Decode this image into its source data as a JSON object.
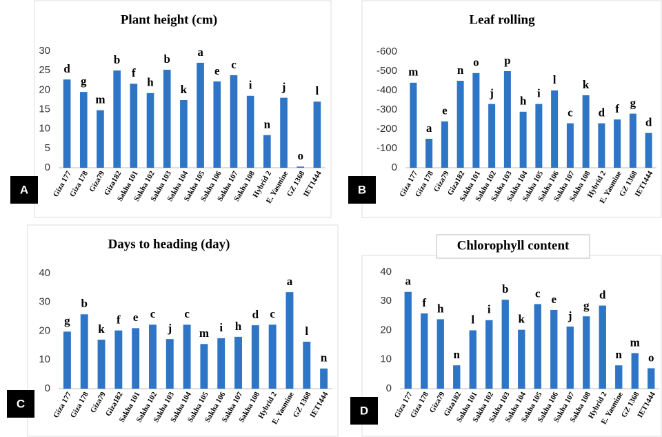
{
  "chart_data": [
    {
      "type": "bar",
      "title": "Plant height (cm)",
      "panel_label": "A",
      "color": "#2e75c6",
      "grid": false,
      "categories": [
        "Giza 177",
        "Giza 178",
        "Giza79",
        "Giza182",
        "Sakha 101",
        "Sakha 102",
        "Sakha 103",
        "Sakha 104",
        "Sakha 105",
        "Sakha 106",
        "Sakha 107",
        "Sakha 108",
        "Hybrid 2",
        "E. Yasmine",
        "GZ 1368",
        "IET1444"
      ],
      "values": [
        22.7,
        19.5,
        14.8,
        25,
        21.6,
        19.2,
        25.2,
        17.4,
        27,
        22.2,
        23.8,
        18.5,
        8.4,
        18,
        0.3,
        17
      ],
      "annotations": [
        "d",
        "g",
        "m",
        "b",
        "f",
        "h",
        "b",
        "k",
        "a",
        "e",
        "c",
        "i",
        "n",
        "j",
        "o",
        "l"
      ],
      "ylim": [
        0,
        30
      ],
      "yticks": [
        0,
        5,
        10,
        15,
        20,
        25,
        30
      ]
    },
    {
      "type": "bar",
      "title": "Leaf rolling",
      "panel_label": "B",
      "color": "#2e75c6",
      "grid": false,
      "categories": [
        "Giza 177",
        "Giza 178",
        "Giza79",
        "Giza182",
        "Sakha 101",
        "Sakha 102",
        "Sakha 103",
        "Sakha 104",
        "Sakha 105",
        "Sakha 106",
        "Sakha 107",
        "Sakha 108",
        "Hybrid 2",
        "E. Yasmine",
        "GZ 1368",
        "IET1444"
      ],
      "values": [
        -440,
        -150,
        -240,
        -450,
        -490,
        -330,
        -500,
        -290,
        -330,
        -400,
        -230,
        -375,
        -230,
        -250,
        -280,
        -180
      ],
      "annotations": [
        "m",
        "a",
        "e",
        "n",
        "o",
        "j",
        "p",
        "h",
        "i",
        "l",
        "c",
        "k",
        "d",
        "f",
        "g",
        "d"
      ],
      "ylim": [
        0,
        -600
      ],
      "yticks": [
        0,
        -100,
        -200,
        -300,
        -400,
        -500,
        -600
      ]
    },
    {
      "type": "bar",
      "title": "Days to heading (day)",
      "panel_label": "C",
      "color": "#2e75c6",
      "grid": false,
      "categories": [
        "Giza 177",
        "Giza 178",
        "Giza79",
        "Giza182",
        "Sakha 101",
        "Sakha 102",
        "Sakha 103",
        "Sakha 104",
        "Sakha 105",
        "Sakha 106",
        "Sakha 107",
        "Sakha 108",
        "Hybrid 2",
        "E. Yasmine",
        "GZ 1368",
        "IET1444"
      ],
      "values": [
        19.8,
        25.8,
        17,
        20.2,
        21,
        22.2,
        17.2,
        22.2,
        15.5,
        17.5,
        18,
        22,
        22.2,
        33.5,
        16.3,
        7
      ],
      "annotations": [
        "g",
        "b",
        "k",
        "f",
        "e",
        "c",
        "j",
        "c",
        "m",
        "i",
        "h",
        "d",
        "c",
        "a",
        "l",
        "n"
      ],
      "ylim": [
        0,
        40
      ],
      "yticks": [
        0,
        10,
        20,
        30,
        40
      ]
    },
    {
      "type": "bar",
      "title": "Chlorophyll  content",
      "panel_label": "D",
      "color": "#2e75c6",
      "grid": false,
      "categories": [
        "Giza 177",
        "Giza 178",
        "Giza79",
        "Giza182",
        "Sakha 101",
        "Sakha 102",
        "Sakha 103",
        "Sakha 104",
        "Sakha 105",
        "Sakha 106",
        "Sakha 107",
        "Sakha 108",
        "Hybrid 2",
        "E. Yasmine",
        "GZ 1368",
        "IET1444"
      ],
      "values": [
        33.2,
        25.8,
        23.8,
        8,
        20,
        23.5,
        30.5,
        20.2,
        29,
        27,
        21.3,
        24.8,
        28.5,
        8,
        12.2,
        7
      ],
      "annotations": [
        "a",
        "f",
        "h",
        "n",
        "l",
        "i",
        "b",
        "k",
        "c",
        "e",
        "j",
        "g",
        "d",
        "n",
        "m",
        "o"
      ],
      "ylim": [
        0,
        40
      ],
      "yticks": [
        0,
        10,
        20,
        30,
        40
      ]
    }
  ]
}
